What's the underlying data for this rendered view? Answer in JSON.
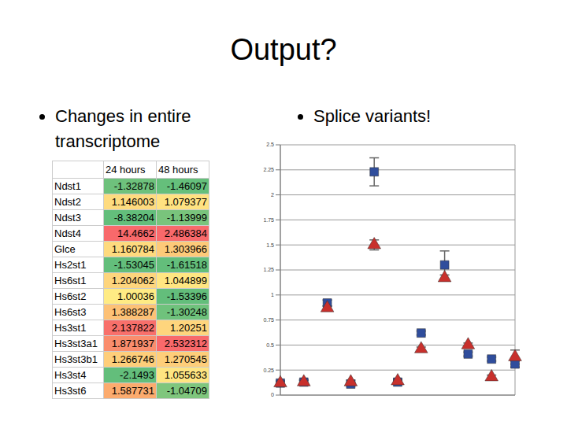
{
  "title": "Output?",
  "bullets": [
    "Changes in entire transcriptome",
    "Splice variants!"
  ],
  "table": {
    "header": [
      "24 hours",
      "48 hours"
    ],
    "rows": [
      [
        "Ndst1",
        "-1.32878",
        "-1.46097"
      ],
      [
        "Ndst2",
        "1.146003",
        "1.079377"
      ],
      [
        "Ndst3",
        "-8.38204",
        "-1.13999"
      ],
      [
        "Ndst4",
        "14.4662",
        "2.486384"
      ],
      [
        "Glce",
        "1.160784",
        "1.303966"
      ],
      [
        "Hs2st1",
        "-1.53045",
        "-1.61518"
      ],
      [
        "Hs6st1",
        "1.204062",
        "1.044899"
      ],
      [
        "Hs6st2",
        "1.00036",
        "-1.53396"
      ],
      [
        "Hs6st3",
        "1.388287",
        "-1.30248"
      ],
      [
        "Hs3st1",
        "2.137822",
        "1.20251"
      ],
      [
        "Hs3st3a1",
        "1.871937",
        "2.532312"
      ],
      [
        "Hs3st3b1",
        "1.266746",
        "1.270545"
      ],
      [
        "Hs3st4",
        "-2.1493",
        "1.055633"
      ],
      [
        "Hs3st6",
        "1.587731",
        "-1.04709"
      ]
    ]
  },
  "chart_data": {
    "type": "scatter",
    "categories": [
      null,
      null,
      null,
      null,
      null,
      null,
      null,
      null,
      null,
      null,
      null
    ],
    "ylim": [
      0,
      2.5
    ],
    "yticks": [
      0,
      0.25,
      0.5,
      0.75,
      1,
      1.25,
      1.5,
      1.75,
      2,
      2.25,
      2.5
    ],
    "grid": true,
    "tick_labels": "y",
    "series": [
      {
        "color": "#2f4d9c",
        "marker": "square",
        "values": [
          0.12,
          0.13,
          0.92,
          0.11,
          2.23,
          0.13,
          0.62,
          1.3,
          0.41,
          0.36,
          0.31
        ],
        "error": [
          0.02,
          0.02,
          0.03,
          0.02,
          0.14,
          0.02,
          0.02,
          0.14,
          0.02,
          0.02,
          0.03
        ]
      },
      {
        "color": "#c8302c",
        "marker": "triangle",
        "values": [
          0.12,
          0.13,
          0.87,
          0.13,
          1.5,
          0.14,
          0.46,
          1.17,
          0.5,
          0.18,
          0.38
        ],
        "error": [
          0.02,
          0.02,
          0.02,
          0.02,
          0.05,
          0.02,
          0.02,
          0.03,
          0.02,
          0.02,
          0.07
        ]
      }
    ]
  }
}
